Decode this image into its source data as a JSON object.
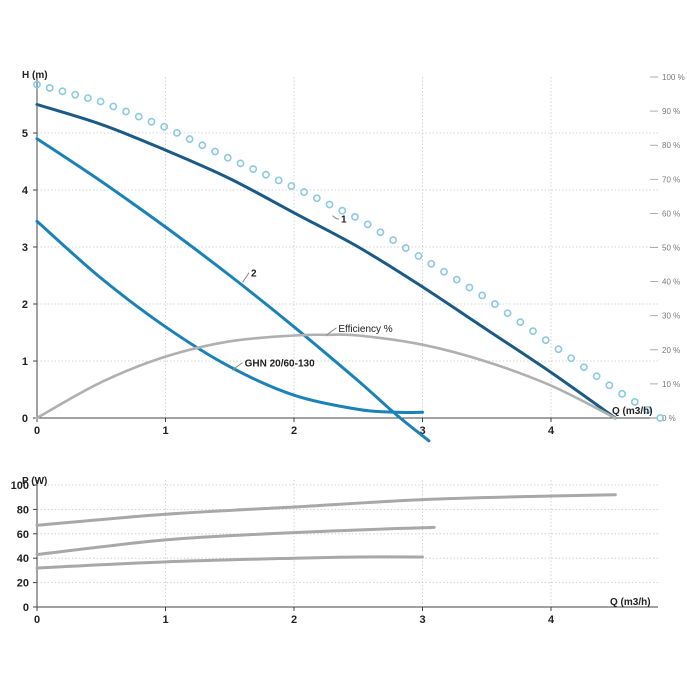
{
  "chart_data": [
    {
      "type": "line",
      "title": "",
      "xlabel": "Q (m3/h)",
      "ylabel": "H (m)",
      "y2label": "",
      "xlim": [
        0,
        5
      ],
      "ylim": [
        0,
        6
      ],
      "y2lim": [
        0,
        100
      ],
      "x_ticks": [
        "0",
        "1",
        "2",
        "3",
        "4"
      ],
      "y_ticks": [
        "0",
        "1",
        "2",
        "3",
        "4",
        "5"
      ],
      "y2_ticks": [
        "0 %",
        "10 %",
        "20 %",
        "30 %",
        "40 %",
        "50 %",
        "60 %",
        "70 %",
        "80 %",
        "90 %",
        "100 %"
      ],
      "grid": true,
      "colors": {
        "curve_1": "#1a5a85",
        "curve_2": "#1b82b8",
        "curve_3": "#1b82b8",
        "efficiency": "#b0b0b0",
        "dots": "#8cc9e3"
      },
      "annotations": [
        {
          "text": "1",
          "x": 2.3,
          "y": 3.55,
          "label_x": 2.35,
          "label_y": 3.5
        },
        {
          "text": "2",
          "x": 1.6,
          "y": 2.38,
          "label_x": 1.65,
          "label_y": 2.55
        },
        {
          "text": "Efficiency %",
          "x": 2.25,
          "y": 1.45,
          "label_x": 2.33,
          "label_y": 1.58
        },
        {
          "text": "GHN 20/60-130",
          "x": 1.52,
          "y": 0.84,
          "label_x": 1.6,
          "label_y": 0.97
        }
      ],
      "series": [
        {
          "key": "curve_1",
          "axis": "left",
          "style": "solid",
          "x": [
            0,
            0.5,
            1,
            1.5,
            2,
            2.5,
            3,
            3.5,
            4,
            4.5
          ],
          "y": [
            5.5,
            5.15,
            4.7,
            4.2,
            3.6,
            3.0,
            2.3,
            1.55,
            0.8,
            0.0
          ]
        },
        {
          "key": "curve_2",
          "axis": "left",
          "style": "solid",
          "x": [
            0,
            0.5,
            1,
            1.5,
            2,
            2.5,
            2.8,
            3.05
          ],
          "y": [
            4.9,
            4.15,
            3.35,
            2.5,
            1.6,
            0.65,
            0.05,
            -0.4
          ]
        },
        {
          "key": "curve_3",
          "axis": "left",
          "style": "solid",
          "x": [
            0,
            0.5,
            1,
            1.5,
            2,
            2.5,
            2.8,
            3.0
          ],
          "y": [
            3.45,
            2.45,
            1.6,
            0.9,
            0.4,
            0.15,
            0.1,
            0.1
          ]
        },
        {
          "key": "efficiency",
          "axis": "right",
          "style": "solid",
          "x": [
            0,
            0.5,
            1,
            1.5,
            2,
            2.25,
            2.5,
            3,
            3.5,
            4,
            4.5
          ],
          "y": [
            0,
            10.5,
            18,
            22.5,
            24.2,
            24.4,
            24.2,
            21.5,
            16.5,
            9.5,
            0
          ]
        },
        {
          "key": "dots",
          "axis": "left",
          "style": "dots",
          "x": [
            0,
            0.5,
            1,
            1.5,
            2,
            2.5,
            3,
            3.5,
            4,
            4.5,
            4.85
          ],
          "y": [
            5.85,
            5.55,
            5.1,
            4.55,
            4.05,
            3.5,
            2.8,
            2.1,
            1.3,
            0.5,
            0.0
          ]
        }
      ]
    },
    {
      "type": "line",
      "title": "",
      "xlabel": "Q (m3/h)",
      "ylabel": "P (W)",
      "xlim": [
        0,
        5
      ],
      "ylim": [
        0,
        100
      ],
      "x_ticks": [
        "0",
        "1",
        "2",
        "3",
        "4"
      ],
      "y_ticks": [
        "0",
        "20",
        "40",
        "60",
        "80",
        "100"
      ],
      "grid": true,
      "colors": {
        "power": "#a8a8a8"
      },
      "series": [
        {
          "key": "power_1",
          "x": [
            0,
            1,
            2,
            3,
            4,
            4.5
          ],
          "y": [
            67,
            76,
            82,
            88,
            91,
            92
          ]
        },
        {
          "key": "power_2",
          "x": [
            0,
            1,
            2,
            3,
            3.05
          ],
          "y": [
            43,
            55,
            61,
            65,
            65
          ]
        },
        {
          "key": "power_3",
          "x": [
            0,
            1,
            2,
            2.5,
            3
          ],
          "y": [
            32,
            37,
            40,
            41,
            41
          ]
        }
      ]
    }
  ]
}
